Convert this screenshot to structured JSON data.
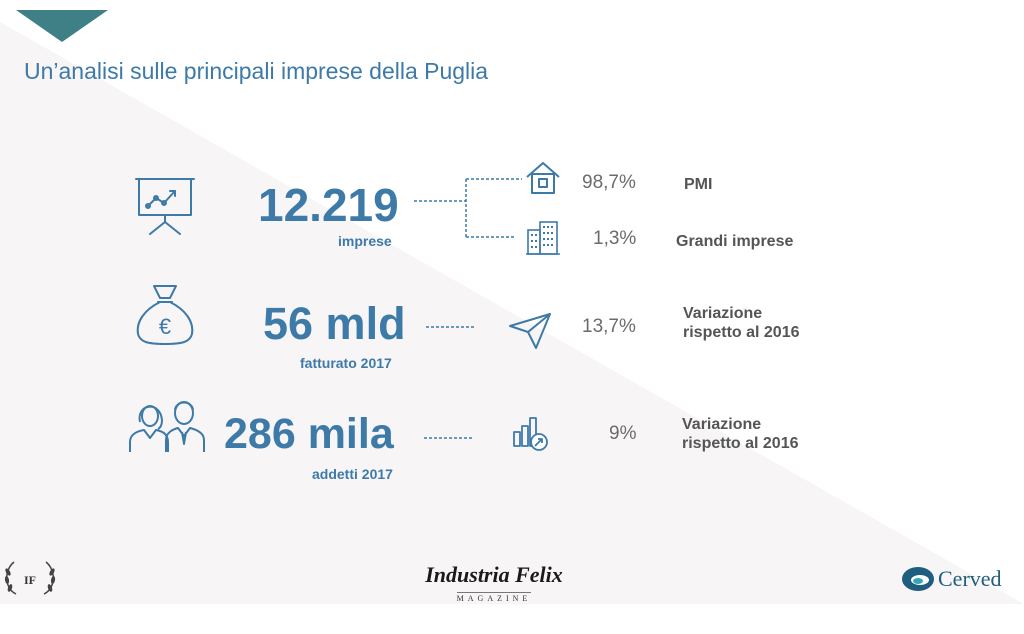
{
  "title": "Un’analisi sulle principali imprese della Puglia",
  "colors": {
    "accent": "#3d7aa8",
    "corner": "#3f7f86",
    "text_gray": "#6b6b6b",
    "label": "#555555"
  },
  "rows": [
    {
      "icon": "presentation-chart-icon",
      "value": "12.219",
      "caption": "imprese",
      "details": [
        {
          "icon": "house-icon",
          "pct": "98,7%",
          "label": "PMI"
        },
        {
          "icon": "building-icon",
          "pct": "1,3%",
          "label": "Grandi imprese"
        }
      ]
    },
    {
      "icon": "money-bag-euro-icon",
      "value": "56 mld",
      "caption": "fatturato 2017",
      "detail": {
        "icon": "paper-plane-icon",
        "pct": "13,7%",
        "label_line1": "Variazione",
        "label_line2": "rispetto al 2016"
      }
    },
    {
      "icon": "people-icon",
      "value": "286 mila",
      "caption": "addetti 2017",
      "detail": {
        "icon": "growth-chart-icon",
        "pct": "9%",
        "label_line1": "Variazione",
        "label_line2": "rispetto al 2016"
      }
    }
  ],
  "footer": {
    "logo_left": "IF",
    "brand_center": "Industria Felix",
    "brand_center_sub": "MAGAZINE",
    "brand_right": "Cerved"
  }
}
